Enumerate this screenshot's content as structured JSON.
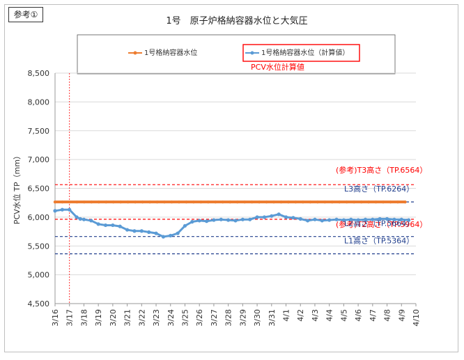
{
  "ref_label": "参考①",
  "chart_data": {
    "type": "line",
    "title": "1号　原子炉格納容器水位と大気圧",
    "ylabel": "PCV水位 TP（mm）",
    "xlabel": "",
    "ylim": [
      4500,
      8500
    ],
    "yticks": [
      4500,
      5000,
      5500,
      6000,
      6500,
      7000,
      7500,
      8000,
      8500
    ],
    "ytick_labels": [
      "4,500",
      "5,000",
      "5,500",
      "6,000",
      "6,500",
      "7,000",
      "7,500",
      "8,000",
      "8,500"
    ],
    "x_dates": [
      "3/16",
      "3/17",
      "3/18",
      "3/19",
      "3/20",
      "3/21",
      "3/22",
      "3/23",
      "3/24",
      "3/25",
      "3/26",
      "3/27",
      "3/28",
      "3/29",
      "3/30",
      "3/31",
      "4/1",
      "4/2",
      "4/3",
      "4/4",
      "4/5",
      "4/6",
      "4/7",
      "4/8",
      "4/9",
      "4/10"
    ],
    "x_tick_labels": [
      "3/16",
      "3/17",
      "3/18",
      "3/19",
      "3/20",
      "3/21",
      "3/22",
      "3/23",
      "3/24",
      "3/25",
      "3/26",
      "3/27",
      "3/28",
      "3/29",
      "3/30",
      "3/31",
      "4/1",
      "4/2",
      "4/3",
      "4/4",
      "4/5",
      "4/6",
      "4/7",
      "4/8",
      "4/9",
      "4/10"
    ],
    "grid": true,
    "legend": "top",
    "vertical_marker_date": "3/17",
    "series": [
      {
        "name": "1号格納容器水位",
        "color": "#ed7d31",
        "constant_value": 6264,
        "x_start": "3/16",
        "x_end": "4/9"
      },
      {
        "name": "1号格納容器水位（計算値）",
        "color": "#5b9bd5",
        "x": [
          "3/16",
          "3/16",
          "3/17",
          "3/17",
          "3/17",
          "3/18",
          "3/18",
          "3/19",
          "3/19",
          "3/20",
          "3/20",
          "3/21",
          "3/21",
          "3/22",
          "3/22",
          "3/23",
          "3/23",
          "3/24",
          "3/24",
          "3/25",
          "3/25",
          "3/26",
          "3/26",
          "3/27",
          "3/27",
          "3/28",
          "3/28",
          "3/29",
          "3/29",
          "3/30",
          "3/30",
          "3/31",
          "3/31",
          "4/1",
          "4/1",
          "4/2",
          "4/2",
          "4/3",
          "4/3",
          "4/4",
          "4/4",
          "4/5",
          "4/5",
          "4/6",
          "4/6",
          "4/7",
          "4/7",
          "4/8",
          "4/8",
          "4/9",
          "4/9"
        ],
        "x_frac": [
          0.0,
          0.5,
          0.0,
          0.5,
          0.75,
          0.0,
          0.5,
          0.0,
          0.5,
          0.0,
          0.5,
          0.0,
          0.5,
          0.0,
          0.5,
          0.0,
          0.5,
          0.0,
          0.5,
          0.0,
          0.5,
          0.0,
          0.5,
          0.0,
          0.5,
          0.0,
          0.5,
          0.0,
          0.5,
          0.0,
          0.5,
          0.0,
          0.5,
          0.0,
          0.5,
          0.0,
          0.5,
          0.0,
          0.5,
          0.0,
          0.5,
          0.0,
          0.5,
          0.0,
          0.5,
          0.0,
          0.5,
          0.0,
          0.5,
          0.0,
          0.5
        ],
        "values": [
          6110,
          6130,
          6130,
          6000,
          5970,
          5960,
          5940,
          5880,
          5860,
          5860,
          5840,
          5780,
          5760,
          5760,
          5740,
          5720,
          5660,
          5680,
          5720,
          5850,
          5920,
          5940,
          5930,
          5950,
          5960,
          5950,
          5940,
          5960,
          5960,
          6000,
          6000,
          6020,
          6050,
          6000,
          5990,
          5970,
          5940,
          5960,
          5940,
          5950,
          5960,
          5950,
          5960,
          5950,
          5960,
          5960,
          5970,
          5970,
          5960,
          5960,
          5950
        ]
      }
    ],
    "reference_lines": [
      {
        "label": "(参考)T3高さ（TP.6564）",
        "value": 6564,
        "color": "#ff0000"
      },
      {
        "label": "L3高さ（TP.6264）",
        "value": 6264,
        "color": "#1f3d8c"
      },
      {
        "label": "(参考)T2高さ（TP.5964）",
        "value": 5964,
        "color": "#ff0000"
      },
      {
        "label": "L2高さ（TP.5664）",
        "value": 5664,
        "color": "#1f3d8c"
      },
      {
        "label": "L1高さ（TP.5364）",
        "value": 5364,
        "color": "#1f3d8c"
      }
    ],
    "annotation": "PCV水位計算値"
  }
}
